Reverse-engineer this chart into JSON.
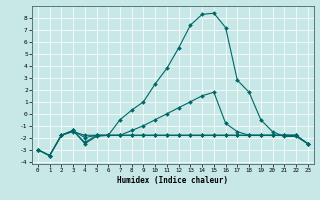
{
  "xlabel": "Humidex (Indice chaleur)",
  "xlim": [
    -0.5,
    23.5
  ],
  "ylim": [
    -4.2,
    9.0
  ],
  "yticks": [
    -4,
    -3,
    -2,
    -1,
    0,
    1,
    2,
    3,
    4,
    5,
    6,
    7,
    8
  ],
  "xticks": [
    0,
    1,
    2,
    3,
    4,
    5,
    6,
    7,
    8,
    9,
    10,
    11,
    12,
    13,
    14,
    15,
    16,
    17,
    18,
    19,
    20,
    21,
    22,
    23
  ],
  "bg_color": "#c8e8e8",
  "line_color": "#006666",
  "series": [
    {
      "x": [
        0,
        1,
        2,
        3,
        4,
        5,
        6,
        7,
        8,
        9,
        10,
        11,
        12,
        13,
        14,
        15,
        16,
        17,
        18,
        19,
        20,
        21,
        22,
        23
      ],
      "y": [
        -3.0,
        -3.5,
        -1.8,
        -1.4,
        -2.4,
        -1.8,
        -1.8,
        -0.5,
        0.3,
        1.0,
        2.5,
        3.8,
        5.5,
        7.4,
        8.3,
        8.4,
        7.2,
        2.8,
        1.8,
        -0.5,
        -1.5,
        -1.9,
        -1.9,
        -2.5
      ],
      "marker": "D",
      "markersize": 2.0
    },
    {
      "x": [
        0,
        1,
        2,
        3,
        4,
        5,
        6,
        7,
        8,
        9,
        10,
        11,
        12,
        13,
        14,
        15,
        16,
        17,
        18,
        19,
        20,
        21,
        22,
        23
      ],
      "y": [
        -3.0,
        -3.5,
        -1.8,
        -1.4,
        -2.0,
        -1.8,
        -1.8,
        -1.8,
        -1.4,
        -1.0,
        -0.5,
        0.0,
        0.5,
        1.0,
        1.5,
        1.8,
        -0.8,
        -1.5,
        -1.8,
        -1.8,
        -1.8,
        -1.8,
        -1.8,
        -2.5
      ],
      "marker": "D",
      "markersize": 2.0
    },
    {
      "x": [
        0,
        1,
        2,
        3,
        4,
        5,
        6,
        7,
        8,
        9,
        10,
        11,
        12,
        13,
        14,
        15,
        16,
        17,
        18,
        19,
        20,
        21,
        22,
        23
      ],
      "y": [
        -3.0,
        -3.5,
        -1.8,
        -1.5,
        -1.8,
        -1.8,
        -1.8,
        -1.8,
        -1.8,
        -1.8,
        -1.8,
        -1.8,
        -1.8,
        -1.8,
        -1.8,
        -1.8,
        -1.8,
        -1.8,
        -1.8,
        -1.8,
        -1.8,
        -1.8,
        -1.8,
        -2.5
      ],
      "marker": "D",
      "markersize": 2.0
    },
    {
      "x": [
        0,
        1,
        2,
        3,
        4,
        5,
        6,
        7,
        8,
        9,
        10,
        11,
        12,
        13,
        14,
        15,
        16,
        17,
        18,
        19,
        20,
        21,
        22,
        23
      ],
      "y": [
        -3.0,
        -3.5,
        -1.8,
        -1.4,
        -2.5,
        -1.9,
        -1.8,
        -1.8,
        -1.8,
        -1.8,
        -1.8,
        -1.8,
        -1.8,
        -1.8,
        -1.8,
        -1.8,
        -1.8,
        -1.8,
        -1.8,
        -1.8,
        -1.8,
        -1.8,
        -1.8,
        -2.5
      ],
      "marker": "D",
      "markersize": 2.0
    }
  ]
}
